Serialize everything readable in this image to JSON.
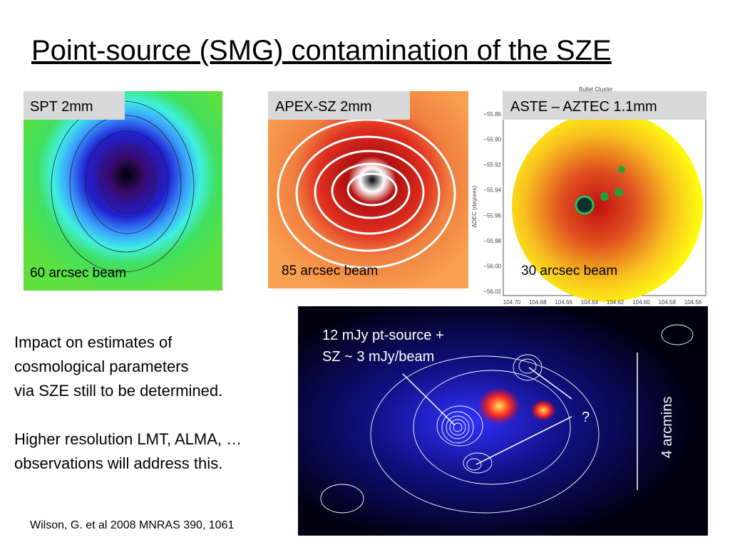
{
  "title": "Point-source (SMG) contamination of the SZE",
  "panels": [
    {
      "label": "SPT  2mm",
      "beam": "60 arcsec beam"
    },
    {
      "label": "APEX-SZ  2mm",
      "beam": "85 arcsec beam"
    },
    {
      "label": "ASTE – AZTEC 1.1mm",
      "beam": "30 arcsec beam",
      "plot_title": "Bullet Cluster",
      "y_axis": "ΔDEC (degrees)",
      "yticks": [
        "−55.86",
        "−55.90",
        "−55.92",
        "−55.94",
        "−55.96",
        "−55.98",
        "−56.00",
        "−56.02"
      ],
      "xticks": [
        "104.70",
        "104.68",
        "104.66",
        "104.64",
        "104.62",
        "104.60",
        "104.58",
        "104.56"
      ]
    }
  ],
  "body": {
    "para1": [
      "Impact on estimates of",
      "cosmological parameters",
      "via SZE still to be determined."
    ],
    "para2": [
      "Higher resolution LMT, ALMA, …",
      "observations will address this."
    ]
  },
  "citation": "Wilson, G. et al 2008 MNRAS 390, 1061",
  "image_annotations": {
    "source": [
      "12 mJy pt-source +",
      "SZ ~ 3 mJy/beam"
    ],
    "question": "?",
    "scale": "4 arcmins"
  }
}
